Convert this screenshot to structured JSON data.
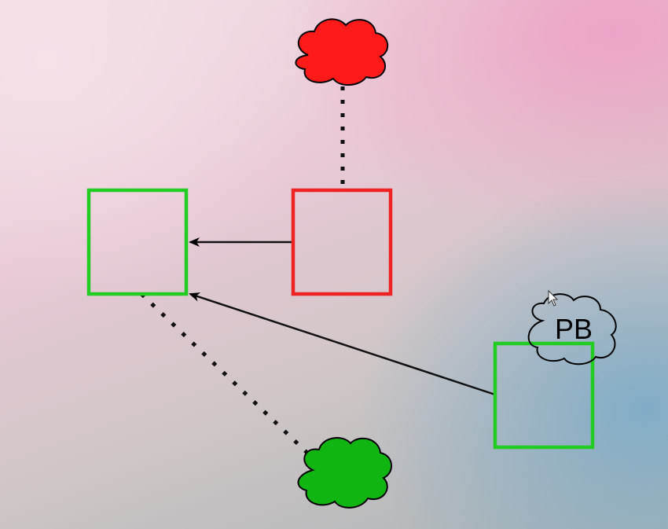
{
  "diagram": {
    "nodes": [
      {
        "id": "left-box",
        "shape": "square",
        "color": "#22cc22"
      },
      {
        "id": "middle-box",
        "shape": "square",
        "color": "#ee2222"
      },
      {
        "id": "right-box",
        "shape": "square",
        "color": "#22cc22"
      },
      {
        "id": "red-cloud",
        "shape": "cloud",
        "fill": "#ff1a1a"
      },
      {
        "id": "green-cloud",
        "shape": "cloud",
        "fill": "#11b511"
      },
      {
        "id": "pb-cloud",
        "shape": "cloud",
        "fill": "none",
        "label": "PB"
      }
    ],
    "edges": [
      {
        "from": "middle-box",
        "to": "left-box",
        "style": "solid-arrow"
      },
      {
        "from": "right-box",
        "to": "left-box",
        "style": "solid-arrow"
      },
      {
        "from": "red-cloud",
        "to": "middle-box",
        "style": "dotted"
      },
      {
        "from": "left-box",
        "to": "green-cloud",
        "style": "dotted"
      }
    ]
  }
}
